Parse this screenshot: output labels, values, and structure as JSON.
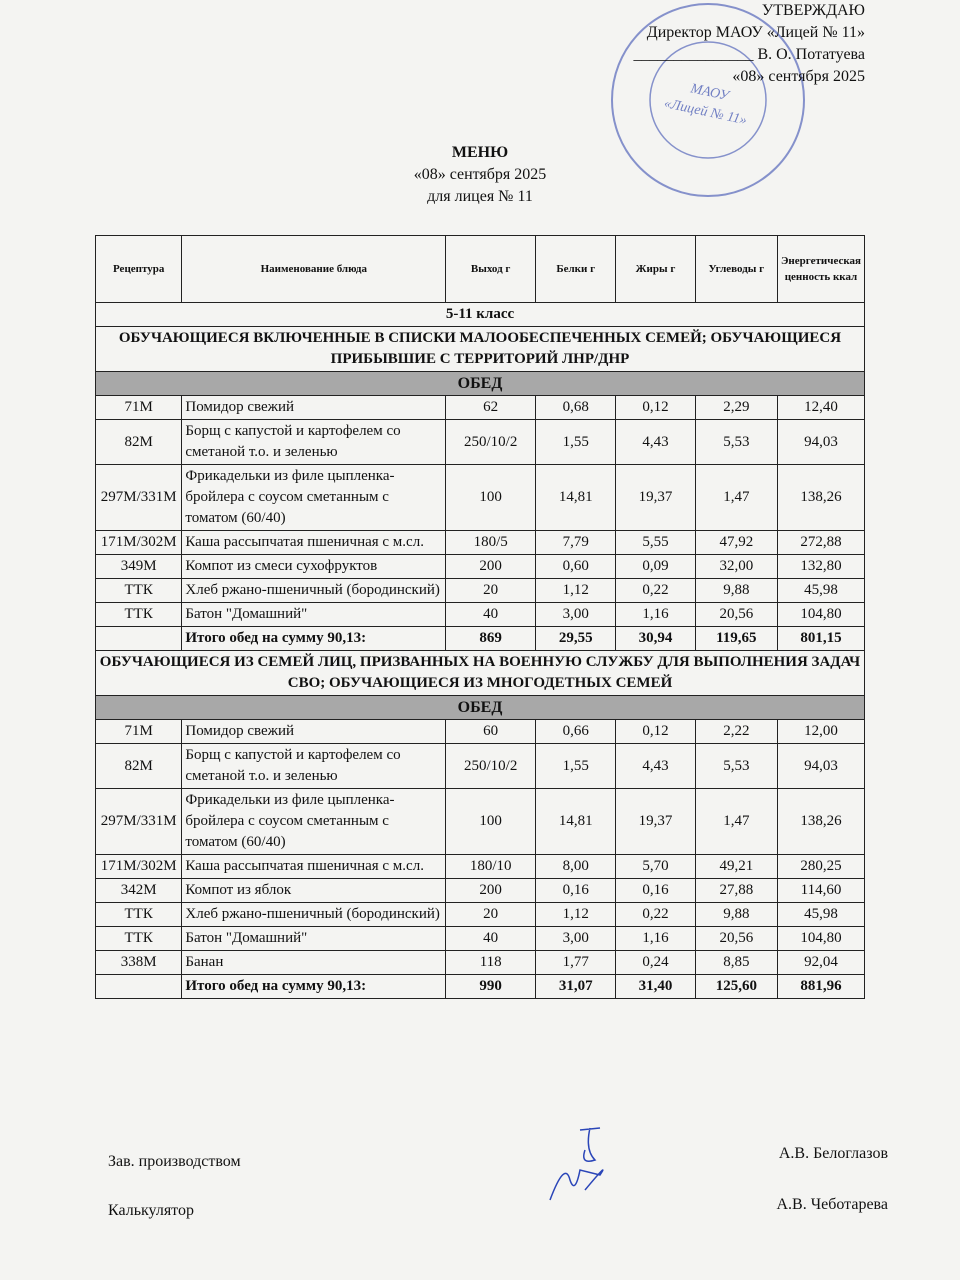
{
  "approval": {
    "title": "УТВЕРЖДАЮ",
    "position": "Директор МАОУ «Лицей № 11»",
    "signature": "_______________ В. О. Потатуева",
    "date": "«08» сентября 2025"
  },
  "stamp": {
    "line1": "МАОУ",
    "line2": "«Лицей № 11»"
  },
  "header": {
    "title": "МЕНЮ",
    "date": "«08» сентября 2025",
    "subtitle": "для лицея № 11"
  },
  "table": {
    "columns": [
      "Рецептура",
      "Наименование блюда",
      "Выход г",
      "Белки г",
      "Жиры г",
      "Углеводы г",
      "Энергетическая ценность ккал"
    ],
    "class_row": "5-11 класс",
    "sections": [
      {
        "group": "ОБУЧАЮЩИЕСЯ ВКЛЮЧЕННЫЕ В СПИСКИ  МАЛООБЕСПЕЧЕННЫХ СЕМЕЙ; ОБУЧАЮЩИЕСЯ ПРИБЫВШИЕ С ТЕРРИТОРИЙ ЛНР/ДНР",
        "meal": "ОБЕД",
        "rows": [
          [
            "71М",
            "Помидор свежий",
            "62",
            "0,68",
            "0,12",
            "2,29",
            "12,40"
          ],
          [
            "82М",
            "Борщ с капустой и картофелем со сметаной т.о. и зеленью",
            "250/10/2",
            "1,55",
            "4,43",
            "5,53",
            "94,03"
          ],
          [
            "297М/331М",
            "Фрикадельки из филе цыпленка-бройлера с соусом сметанным с томатом (60/40)",
            "100",
            "14,81",
            "19,37",
            "1,47",
            "138,26"
          ],
          [
            "171М/302М",
            "Каша рассыпчатая пшеничная с м.сл.",
            "180/5",
            "7,79",
            "5,55",
            "47,92",
            "272,88"
          ],
          [
            "349М",
            "Компот из смеси сухофруктов",
            "200",
            "0,60",
            "0,09",
            "32,00",
            "132,80"
          ],
          [
            "ТТК",
            "Хлеб ржано-пшеничный (бородинский)",
            "20",
            "1,12",
            "0,22",
            "9,88",
            "45,98"
          ],
          [
            "ТТК",
            "Батон \"Домашний\"",
            "40",
            "3,00",
            "1,16",
            "20,56",
            "104,80"
          ]
        ],
        "total": {
          "label": "Итого обед на сумму 90,13:",
          "values": [
            "869",
            "29,55",
            "30,94",
            "119,65",
            "801,15"
          ]
        }
      },
      {
        "group": "ОБУЧАЮЩИЕСЯ ИЗ СЕМЕЙ ЛИЦ, ПРИЗВАННЫХ НА ВОЕННУЮ СЛУЖБУ ДЛЯ ВЫПОЛНЕНИЯ ЗАДАЧ СВО; ОБУЧАЮЩИЕСЯ ИЗ МНОГОДЕТНЫХ СЕМЕЙ",
        "meal": "ОБЕД",
        "rows": [
          [
            "71М",
            "Помидор свежий",
            "60",
            "0,66",
            "0,12",
            "2,22",
            "12,00"
          ],
          [
            "82М",
            "Борщ с капустой и картофелем со сметаной т.о. и зеленью",
            "250/10/2",
            "1,55",
            "4,43",
            "5,53",
            "94,03"
          ],
          [
            "297М/331М",
            "Фрикадельки из филе цыпленка-бройлера с соусом сметанным с томатом (60/40)",
            "100",
            "14,81",
            "19,37",
            "1,47",
            "138,26"
          ],
          [
            "171М/302М",
            "Каша рассыпчатая пшеничная с м.сл.",
            "180/10",
            "8,00",
            "5,70",
            "49,21",
            "280,25"
          ],
          [
            "342М",
            "Компот из яблок",
            "200",
            "0,16",
            "0,16",
            "27,88",
            "114,60"
          ],
          [
            "ТТК",
            "Хлеб ржано-пшеничный (бородинский)",
            "20",
            "1,12",
            "0,22",
            "9,88",
            "45,98"
          ],
          [
            "ТТК",
            "Батон \"Домашний\"",
            "40",
            "3,00",
            "1,16",
            "20,56",
            "104,80"
          ],
          [
            "338М",
            "Банан",
            "118",
            "1,77",
            "0,24",
            "8,85",
            "92,04"
          ]
        ],
        "total": {
          "label": "Итого обед на сумму 90,13:",
          "values": [
            "990",
            "31,07",
            "31,40",
            "125,60",
            "881,96"
          ]
        }
      }
    ]
  },
  "signatures": [
    {
      "role": "Зав. производством",
      "name": "А.В. Белоглазов"
    },
    {
      "role": "Калькулятор",
      "name": "А.В. Чеботарева"
    }
  ]
}
